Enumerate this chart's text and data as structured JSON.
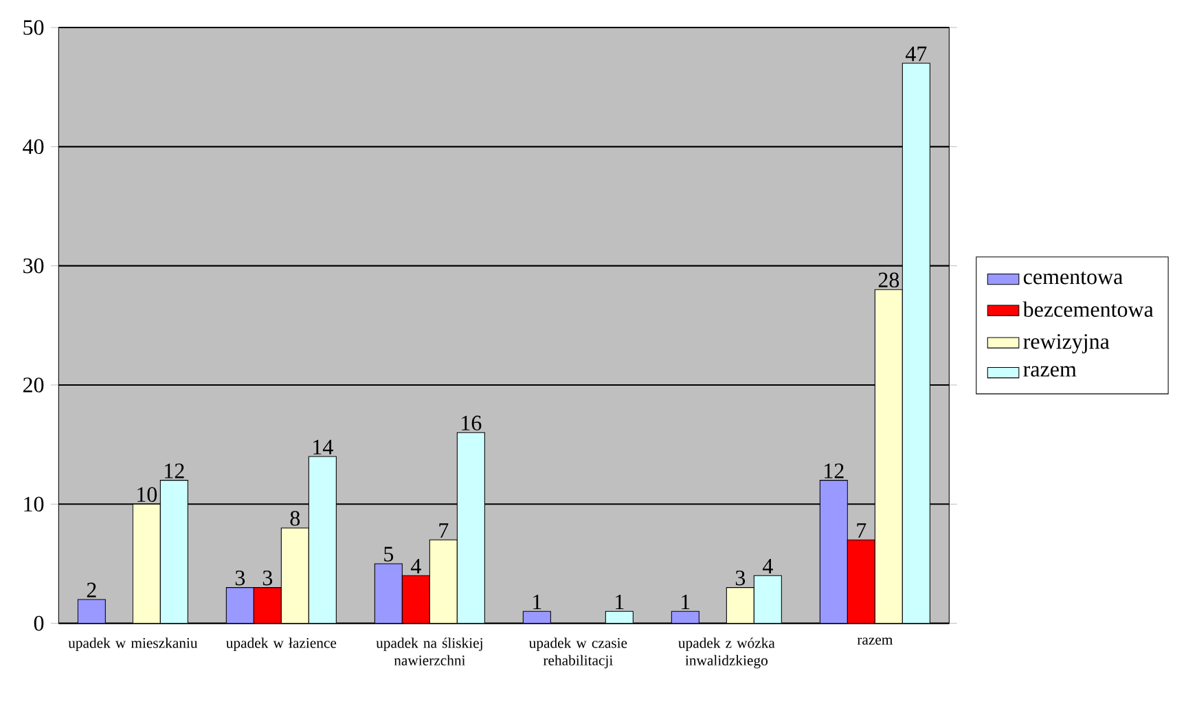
{
  "chart_data": {
    "type": "bar",
    "categories": [
      "upadek w mieszkaniu",
      "upadek w łazience",
      "upadek na śliskiej nawierzchni",
      "upadek w czasie rehabilitacji",
      "upadek z wózka inwalidzkiego",
      "razem"
    ],
    "series": [
      {
        "name": "cementowa",
        "color": "#9999ff",
        "values": [
          2,
          3,
          5,
          1,
          1,
          12
        ]
      },
      {
        "name": "bezcementowa",
        "color": "#ff0000",
        "values": [
          null,
          3,
          4,
          null,
          null,
          7
        ]
      },
      {
        "name": "rewizyjna",
        "color": "#ffffcc",
        "values": [
          10,
          8,
          7,
          null,
          3,
          28
        ]
      },
      {
        "name": "razem",
        "color": "#ccffff",
        "values": [
          12,
          14,
          16,
          1,
          4,
          47
        ]
      }
    ],
    "ylim": [
      0,
      50
    ],
    "yticks": [
      0,
      10,
      20,
      30,
      40,
      50
    ],
    "grid": "y",
    "legend": "right",
    "data_labels": true
  }
}
